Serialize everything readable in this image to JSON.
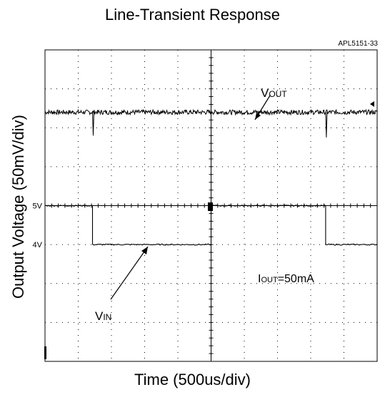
{
  "chart_data": {
    "type": "line",
    "title": "Line-Transient Response",
    "figure_id": "APL5151-33",
    "xlabel": "Time (500us/div)",
    "ylabel": "Output Voltage (50mV/div)",
    "grid": true,
    "divisions": {
      "x": 10,
      "y": 8
    },
    "series": [
      {
        "name_main": "V",
        "name_sub": "OUT",
        "coupling": "AC",
        "baseline_div": 6.4,
        "noise_div": 0.06,
        "spikes": [
          {
            "t_div": 1.43,
            "depth_div": -0.6
          },
          {
            "t_div": 8.45,
            "depth_div": -0.65
          }
        ],
        "step_glitch": {
          "t_div": 5.0,
          "height_div": 0.35
        }
      },
      {
        "name_main": "V",
        "name_sub": "IN",
        "transitions": [
          {
            "t_div": 0,
            "v": 5
          },
          {
            "t_div": 1.43,
            "v": 4
          },
          {
            "t_div": 5.0,
            "v": 5
          },
          {
            "t_div": 8.45,
            "v": 4
          },
          {
            "t_div": 10,
            "v": 4
          }
        ],
        "levels": [
          {
            "label": "5V",
            "v": 5,
            "y_div": 4.0
          },
          {
            "label": "4V",
            "v": 4,
            "y_div": 3.0
          }
        ]
      }
    ],
    "annotations": {
      "iout": {
        "main": "I",
        "sub": "OUT",
        "rest": "=50mA"
      }
    }
  }
}
